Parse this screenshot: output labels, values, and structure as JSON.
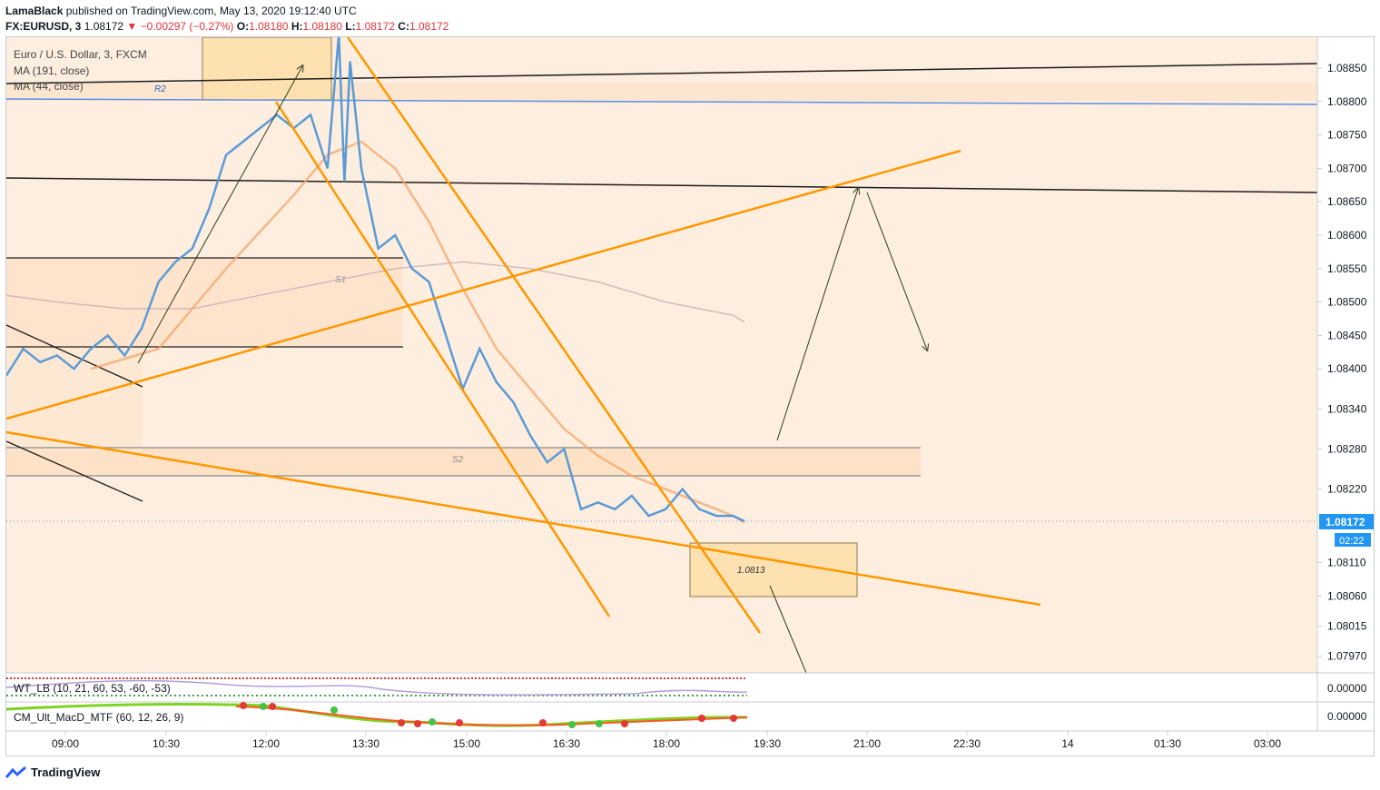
{
  "header": {
    "author": "LamaBlack",
    "published_text": "published on TradingView.com, May 13, 2020 19:12:40 UTC",
    "symbol": "FX:EURUSD, 3",
    "price": "1.08172",
    "change": "−0.00297 (−0.27%)",
    "o_label": "O:",
    "o_value": "1.08180",
    "h_label": "H:",
    "h_value": "1.08180",
    "l_label": "L:",
    "l_value": "1.08172",
    "c_label": "C:",
    "c_value": "1.08172"
  },
  "legend": {
    "title": "Euro / U.S. Dollar, 3, FXCM",
    "ma1": "MA (191, close)",
    "ma2": "MA (44, close)"
  },
  "indicators": {
    "wt": "WT_LB (10, 21, 60, 53, -60, -53)",
    "macd": "CM_Ult_MacD_MTF (60, 12, 26, 9)",
    "wt_value": "0.00000",
    "macd_value": "0.00000"
  },
  "annotations": {
    "r2": "R2",
    "s1": "S1",
    "s2": "S2",
    "target": "1.0813"
  },
  "price_badge": {
    "price": "1.08172",
    "countdown": "02:22"
  },
  "colors": {
    "price_line": "#5b9bd5",
    "ma44": "#f5a46a",
    "ma191": "#c8aab0",
    "trend_orange": "#ff9800",
    "zone_fill": "#fde8d4",
    "badge_blue": "#2196f3"
  },
  "chart_data": {
    "type": "line",
    "title": "Euro / U.S. Dollar, 3, FXCM",
    "xlabel": "",
    "ylabel": "",
    "ylim": [
      1.0793,
      1.08905
    ],
    "y_ticks": [
      "1.08850",
      "1.08800",
      "1.08750",
      "1.08700",
      "1.08650",
      "1.08600",
      "1.08550",
      "1.08500",
      "1.08450",
      "1.08400",
      "1.08340",
      "1.08280",
      "1.08220",
      "1.08172",
      "1.08110",
      "1.08060",
      "1.08015",
      "1.07970"
    ],
    "x_ticks": [
      "09:00",
      "10:30",
      "12:00",
      "13:30",
      "15:00",
      "16:30",
      "18:00",
      "19:30",
      "21:00",
      "22:30",
      "14",
      "01:30",
      "03:00"
    ],
    "series": [
      {
        "name": "EURUSD",
        "x": [
          "08:15",
          "08:30",
          "08:45",
          "09:00",
          "09:15",
          "09:30",
          "09:45",
          "10:00",
          "10:15",
          "10:30",
          "10:45",
          "11:00",
          "11:15",
          "11:30",
          "11:45",
          "12:00",
          "12:15",
          "12:30",
          "12:45",
          "13:00",
          "13:10",
          "13:15",
          "13:20",
          "13:30",
          "13:45",
          "14:00",
          "14:15",
          "14:30",
          "14:45",
          "15:00",
          "15:15",
          "15:30",
          "15:45",
          "16:00",
          "16:15",
          "16:30",
          "16:45",
          "17:00",
          "17:15",
          "17:30",
          "17:45",
          "18:00",
          "18:15",
          "18:30",
          "18:45",
          "19:00",
          "19:10"
        ],
        "values": [
          1.0839,
          1.0843,
          1.0841,
          1.0842,
          1.084,
          1.0843,
          1.0845,
          1.0842,
          1.0846,
          1.0853,
          1.0856,
          1.0858,
          1.0864,
          1.0872,
          1.0874,
          1.0876,
          1.0878,
          1.0876,
          1.0878,
          1.087,
          1.089,
          1.0868,
          1.0886,
          1.087,
          1.0858,
          1.086,
          1.0855,
          1.0853,
          1.0845,
          1.0837,
          1.0843,
          1.0838,
          1.0835,
          1.083,
          1.0826,
          1.0828,
          1.0819,
          1.082,
          1.0819,
          1.0821,
          1.0818,
          1.0819,
          1.0822,
          1.0819,
          1.0818,
          1.0818,
          1.08172
        ]
      },
      {
        "name": "MA (44, close)",
        "x": [
          "09:30",
          "10:30",
          "11:30",
          "12:30",
          "13:00",
          "13:30",
          "14:00",
          "14:30",
          "15:00",
          "15:30",
          "16:00",
          "16:30",
          "17:00",
          "17:30",
          "18:00",
          "18:30",
          "19:00",
          "19:10"
        ],
        "values": [
          1.084,
          1.0843,
          1.0855,
          1.0866,
          1.0872,
          1.0874,
          1.087,
          1.0862,
          1.0852,
          1.0843,
          1.0837,
          1.0831,
          1.0827,
          1.0824,
          1.0822,
          1.082,
          1.0818,
          1.0817
        ]
      },
      {
        "name": "MA (191, close)",
        "x": [
          "08:15",
          "09:00",
          "10:00",
          "11:00",
          "12:00",
          "13:00",
          "14:00",
          "15:00",
          "16:00",
          "17:00",
          "18:00",
          "19:00",
          "19:10"
        ],
        "values": [
          1.0851,
          1.085,
          1.0849,
          1.0849,
          1.0851,
          1.0853,
          1.0855,
          1.0856,
          1.0855,
          1.0853,
          1.085,
          1.0848,
          1.0847
        ]
      }
    ]
  }
}
